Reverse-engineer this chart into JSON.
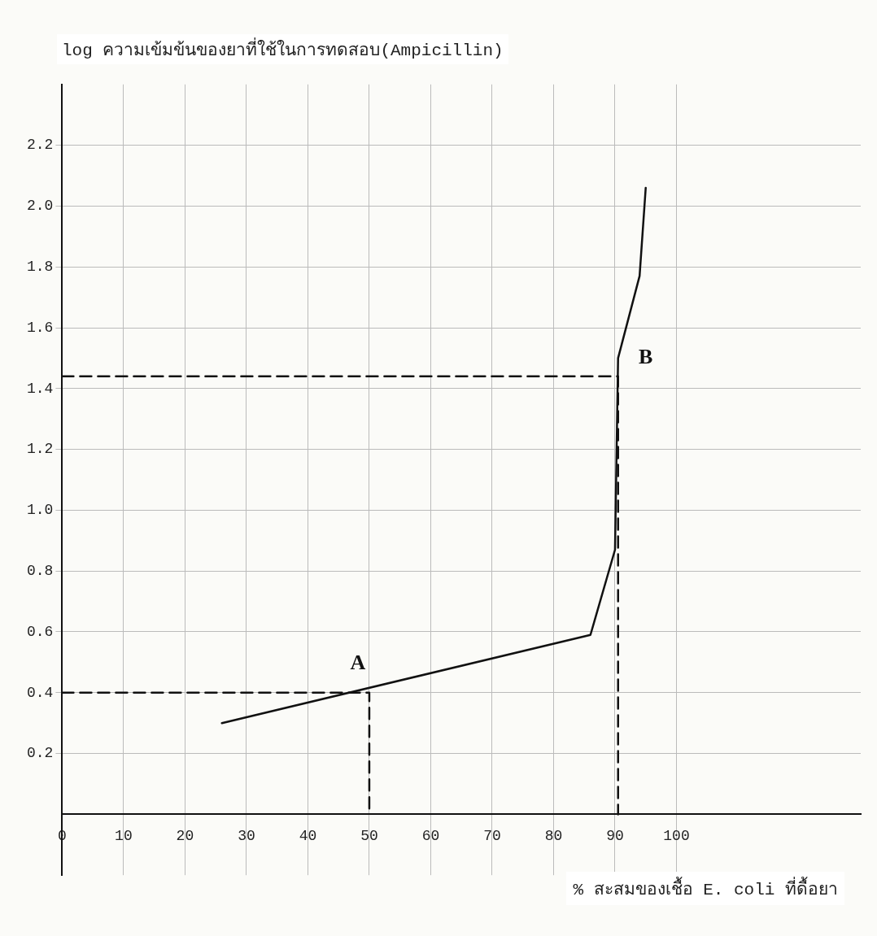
{
  "chart_data": {
    "type": "line",
    "ylabel": "log ความเข้มข้นของยาที่ใช้ในการทดสอบ(Ampicillin)",
    "xlabel": "% สะสมของเชื้อ E. coli ที่ดื้อยา",
    "series": [
      {
        "color": "#111111",
        "x": [
          26,
          86,
          90,
          90.5,
          94,
          95
        ],
        "values": [
          0.3,
          0.59,
          0.87,
          1.5,
          1.77,
          2.06
        ]
      },
      {
        "color": "#111111",
        "line_style": "dashed",
        "x": [
          0,
          50,
          50
        ],
        "values": [
          0.4,
          0.4,
          0
        ]
      },
      {
        "color": "#111111",
        "line_style": "dashed",
        "x": [
          0,
          90.5,
          90.5
        ],
        "values": [
          1.44,
          1.44,
          0
        ]
      }
    ],
    "annotations": [
      {
        "text": "A",
        "x": 50,
        "y": 0.4
      },
      {
        "text": "B",
        "x": 90.5,
        "y": 1.5
      }
    ],
    "xlim": [
      0,
      130
    ],
    "xticks": [
      0,
      10,
      20,
      30,
      40,
      50,
      60,
      70,
      80,
      90,
      100
    ],
    "ylim": [
      -0.2,
      2.4
    ],
    "yticks": [
      0.2,
      0.4,
      0.6,
      0.8,
      {
        "value": 1,
        "label": "1.0"
      },
      1.2,
      1.4,
      1.6,
      1.8,
      {
        "value": 2,
        "label": "2.0"
      },
      2.2
    ],
    "grid": true,
    "legend": false,
    "marker": "none",
    "line_style": "solid"
  }
}
